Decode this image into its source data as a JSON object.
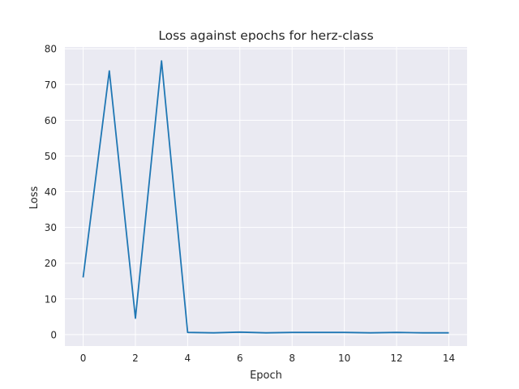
{
  "chart_data": {
    "type": "line",
    "title": "Loss against epochs for herz-class",
    "xlabel": "Epoch",
    "ylabel": "Loss",
    "xlim": [
      -0.7,
      14.7
    ],
    "ylim": [
      -3.2,
      80.5
    ],
    "xticks": [
      0,
      2,
      4,
      6,
      8,
      10,
      12,
      14
    ],
    "yticks": [
      0,
      10,
      20,
      30,
      40,
      50,
      60,
      70,
      80
    ],
    "grid": true,
    "legend": "none",
    "series": [
      {
        "x": [
          0,
          1,
          2,
          3,
          4,
          5,
          6,
          7,
          8,
          9,
          10,
          11,
          12,
          13,
          14
        ],
        "y": [
          16.0,
          73.8,
          4.6,
          76.6,
          0.6,
          0.5,
          0.7,
          0.5,
          0.6,
          0.6,
          0.6,
          0.5,
          0.6,
          0.5,
          0.5
        ],
        "color": "#1f77b4"
      }
    ],
    "colors": {
      "plot_background": "#eaeaf2",
      "grid": "#ffffff",
      "line": "#1f77b4"
    }
  }
}
